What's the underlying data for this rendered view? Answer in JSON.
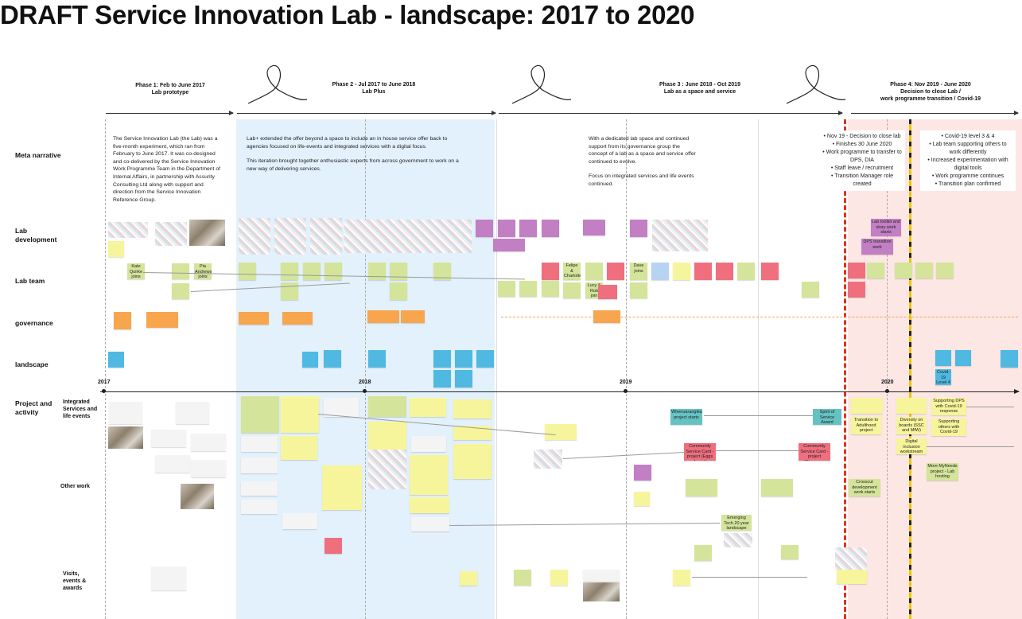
{
  "title": "DRAFT Service Innovation Lab - landscape: 2017 to 2020",
  "phases": [
    {
      "name": "Phase 1: Feb to June 2017",
      "sub": "Lab prototype"
    },
    {
      "name": "Phase 2 - Jul 2017 to June 2018",
      "sub": "Lab Plus"
    },
    {
      "name": "Phase 3 : June 2018 - Oct 2019",
      "sub": "Lab as a space and  service"
    },
    {
      "name": "Phase 4: Nov 2019 - June 2020",
      "sub": "Decision to close Lab /",
      "sub2": "work programme transition / Covid-19"
    }
  ],
  "rows": {
    "meta": "Meta narrative",
    "labdev": "Lab development",
    "labteam": "Lab team",
    "gov": "governance",
    "land": "landscape",
    "proj": "Project and activity",
    "isle": "Integrated Services and life events",
    "other": "Other work",
    "visits": "Visits, events & awards"
  },
  "years": [
    "2017",
    "2018",
    "2019",
    "2020"
  ],
  "narrative": {
    "p1": "The Service Innovation Lab (the Lab) was a five-month experiment, which ran from February to June 2017. It was co-designed and co-delivered by the Service Innovation Work Programme Team in the Department of Internal Affairs, in partnership with Assurity Consulting Ltd along with support and direction from the Service Innovation Reference Group.",
    "p2a": "Lab+ extended the offer beyond a space to include an in house service offer back to agencies focused on life-events and integrated services with a digital focus.",
    "p2b": "This iteration brought together enthusiastic experts from across government to work on a new way of delivering services.",
    "p3a": "With a dedicated lab space and continued support from its governance group the concept of a lab as a space and service offer continued to evolve.",
    "p3b": "Focus on integrated services and life events continued.",
    "p4a": [
      "Nov 19 - Decision to close lab",
      "Finishes 30 June 2020",
      "Work programme to transfer to DPS, DIA",
      "Staff leave / recruitment",
      "Transition Manager role created"
    ],
    "p4b": [
      "Covid-19 level 3 & 4",
      "Lab team supporting others to work differently",
      "Increased experimentation with digital tools",
      "Work programme continues",
      "Transition plan confirmed"
    ]
  },
  "stickies": {
    "dps": "DPS transition work",
    "toolkit": "Lab toolkit and story work starts",
    "transition": "Transition to Adulthood project",
    "diversity": "Diversity on boards (SSC and MfW)",
    "digital": "Digital inclusion workstream",
    "covid": "Supporting DPS with Covid-19 response",
    "others": "Supporting others with Covid-19 response",
    "myneeds": "More MyNeeds project - Lab hosting",
    "crosscut": "Crosscut development work starts",
    "emerging": "Emerging Tech 20 year landscape",
    "csl1": "Community Service Card - project (Eggs Assist)",
    "csl2": "Community Service Card - project (Discovery work)",
    "whe1": "Whenuarangitia project starts",
    "whe2": "Spirit of Service Award Whenuarangitia",
    "covlvl": "Covid-19 Level 4",
    "team1": "Kate Quirke joins",
    "team2": "Pia Andrews joins",
    "team3": "Dave joins",
    "team4": "Felipe & Charlotte join",
    "team5": "Lucy & Rob join"
  }
}
